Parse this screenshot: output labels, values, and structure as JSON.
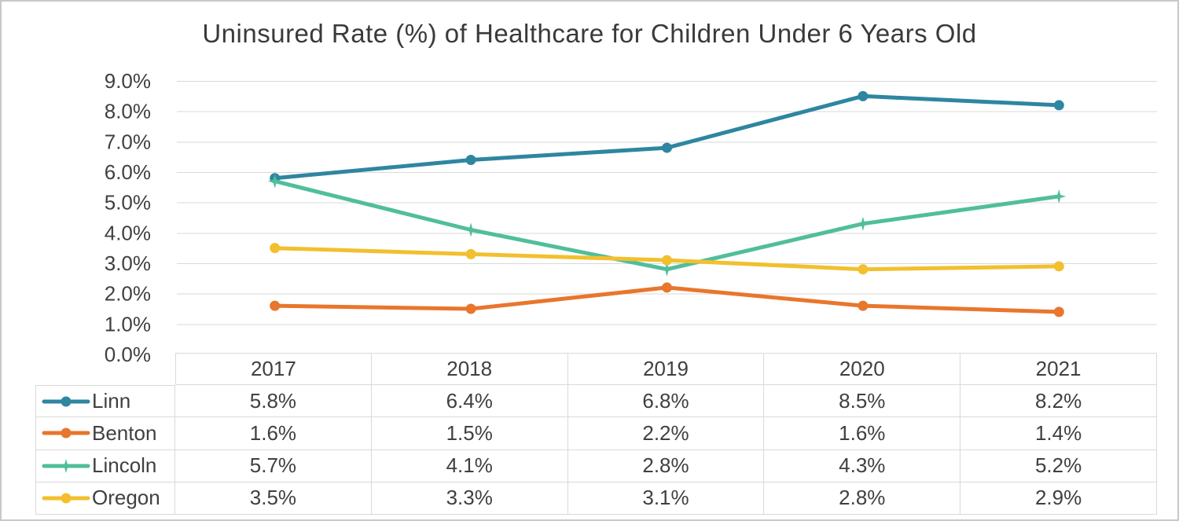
{
  "title": "Uninsured Rate (%) of Healthcare for Children Under 6 Years Old",
  "chart_data": {
    "type": "line",
    "title": "Uninsured Rate (%) of Healthcare for Children Under 6 Years Old",
    "categories": [
      "2017",
      "2018",
      "2019",
      "2020",
      "2021"
    ],
    "series": [
      {
        "name": "Linn",
        "color": "#2E86A0",
        "marker": "circle",
        "values": [
          5.8,
          6.4,
          6.8,
          8.5,
          8.2
        ],
        "cells": [
          "5.8%",
          "6.4%",
          "6.8%",
          "8.5%",
          "8.2%"
        ]
      },
      {
        "name": "Benton",
        "color": "#E8762C",
        "marker": "circle",
        "values": [
          1.6,
          1.5,
          2.2,
          1.6,
          1.4
        ],
        "cells": [
          "1.6%",
          "1.5%",
          "2.2%",
          "1.6%",
          "1.4%"
        ]
      },
      {
        "name": "Lincoln",
        "color": "#50BE9B",
        "marker": "star",
        "values": [
          5.7,
          4.1,
          2.8,
          4.3,
          5.2
        ],
        "cells": [
          "5.7%",
          "4.1%",
          "2.8%",
          "4.3%",
          "5.2%"
        ]
      },
      {
        "name": "Oregon",
        "color": "#F2C02E",
        "marker": "circle",
        "values": [
          3.5,
          3.3,
          3.1,
          2.8,
          2.9
        ],
        "cells": [
          "3.5%",
          "3.3%",
          "3.1%",
          "2.8%",
          "2.9%"
        ]
      }
    ],
    "xlabel": "",
    "ylabel": "",
    "ylim": [
      0,
      9
    ],
    "ytick_step": 1,
    "yticks": [
      "0.0%",
      "1.0%",
      "2.0%",
      "3.0%",
      "4.0%",
      "5.0%",
      "6.0%",
      "7.0%",
      "8.0%",
      "9.0%"
    ],
    "grid": true,
    "legend_position": "data-table-left"
  },
  "colors": {
    "grid": "#D9D9D9",
    "table_border": "#D9D9D9",
    "text": "#404040",
    "frame_border": "#C8C8C8"
  }
}
